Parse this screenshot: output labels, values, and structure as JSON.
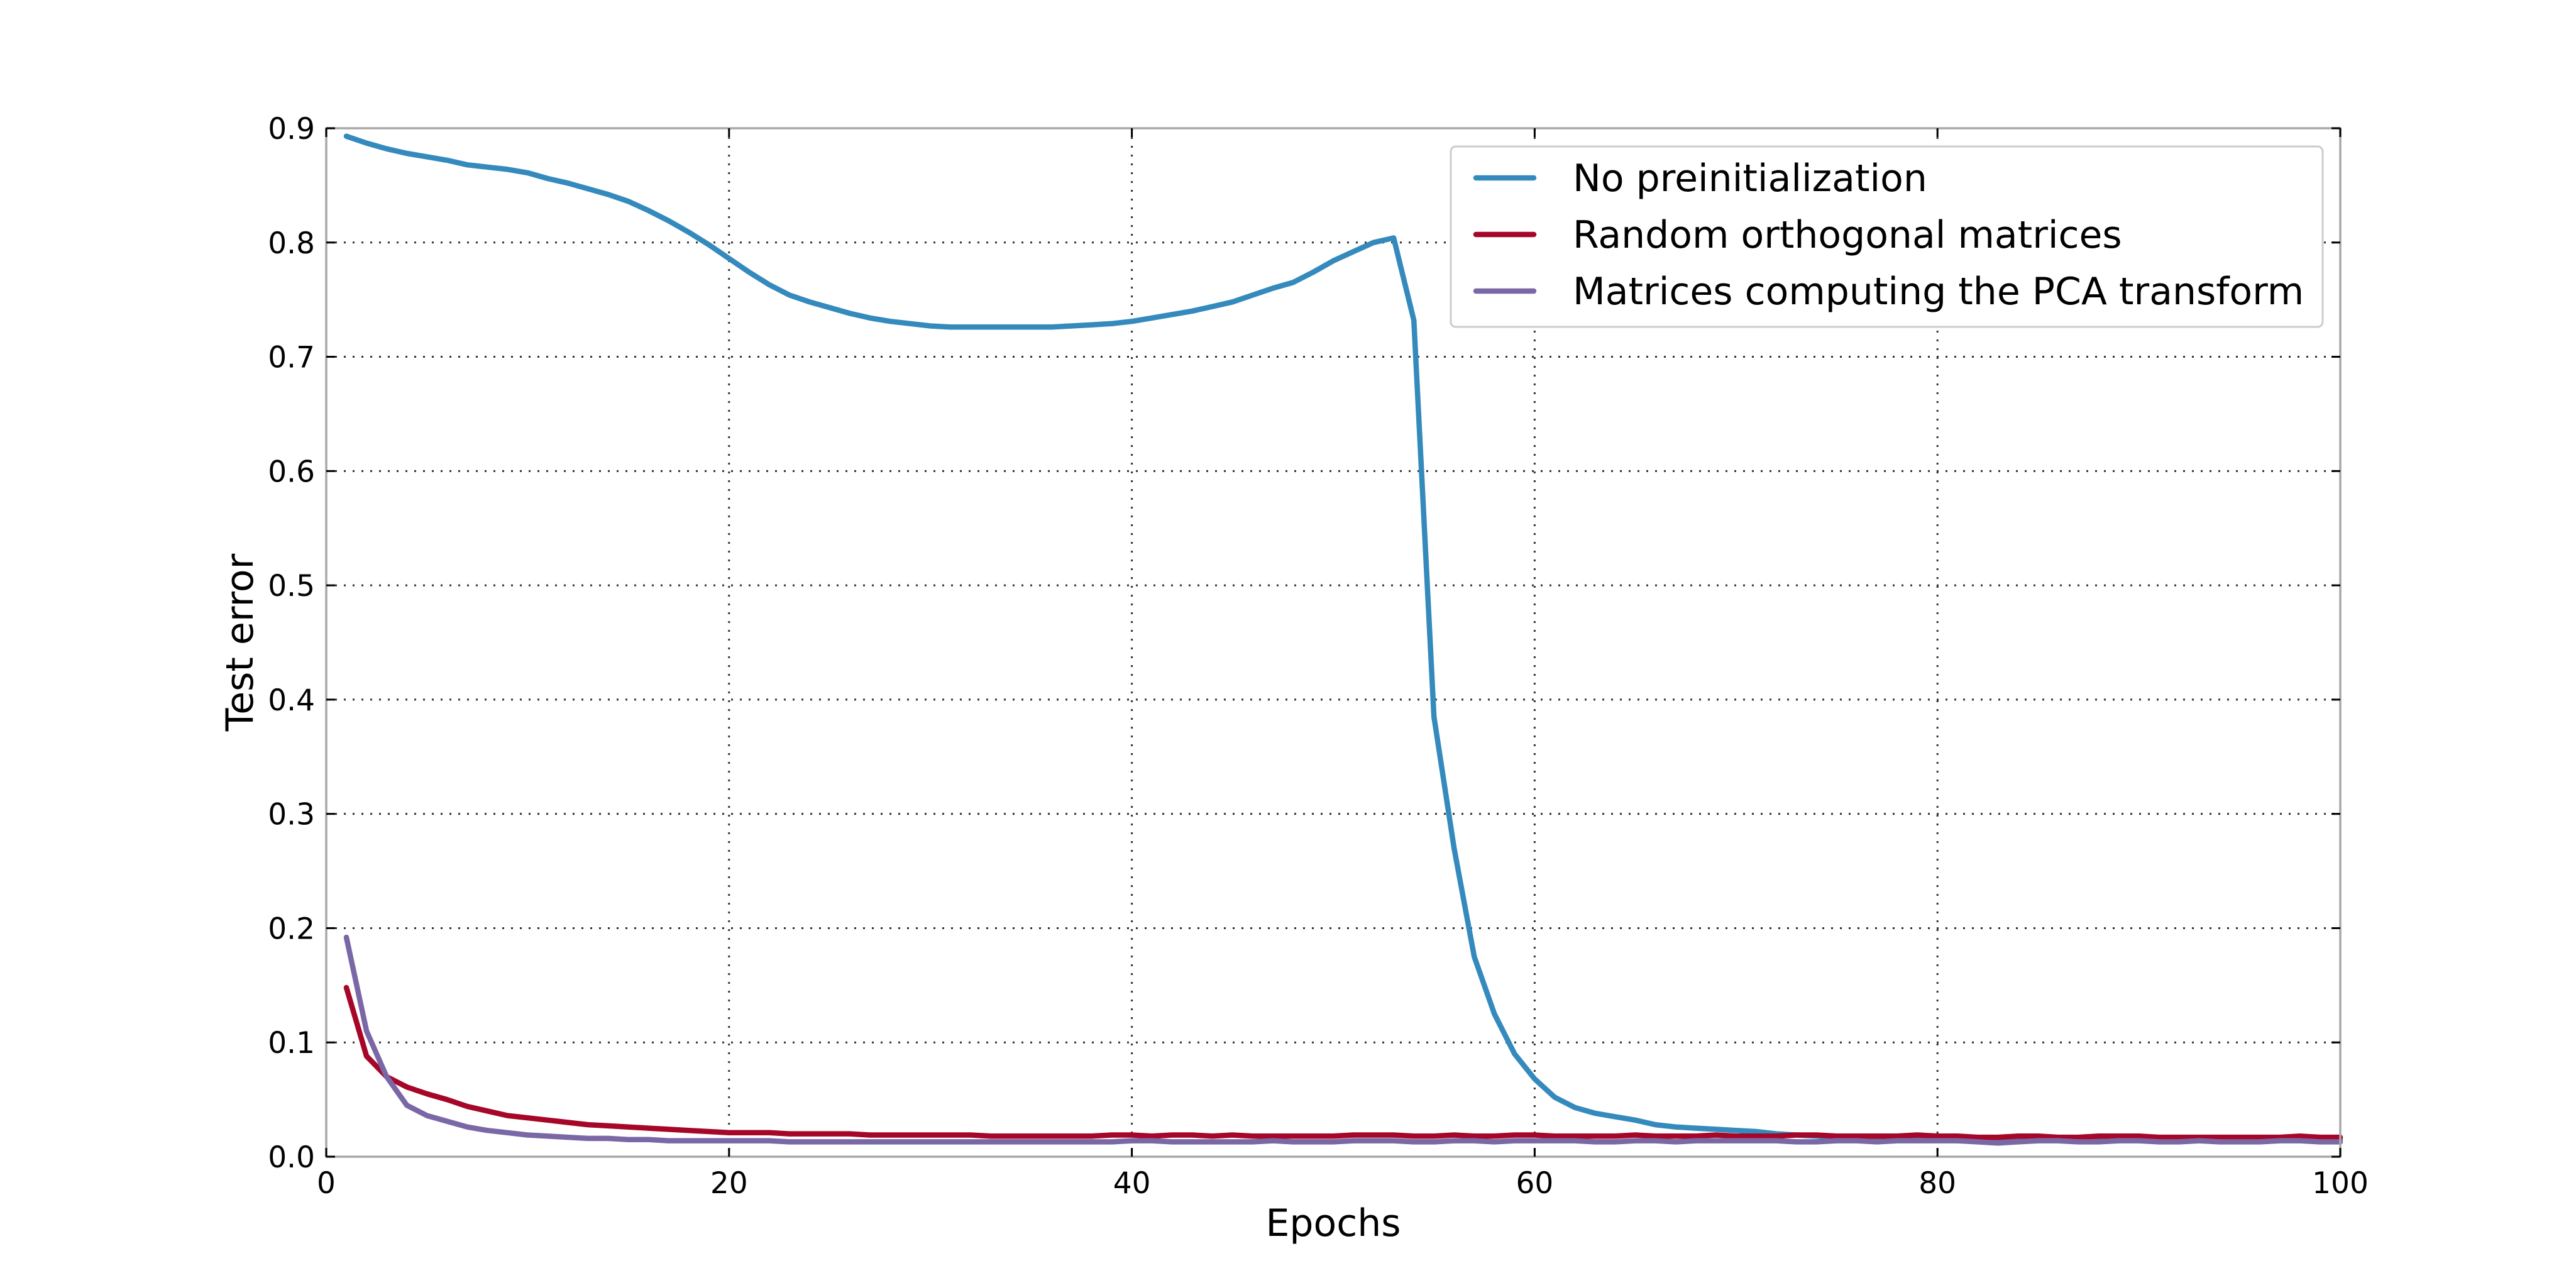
{
  "chart_data": {
    "type": "line",
    "title": "",
    "xlabel": "Epochs",
    "ylabel": "Test error",
    "xlim": [
      0,
      100
    ],
    "ylim": [
      0,
      0.9
    ],
    "xticks": [
      0,
      20,
      40,
      60,
      80,
      100
    ],
    "xtick_labels": [
      "0",
      "20",
      "40",
      "60",
      "80",
      "100"
    ],
    "yticks": [
      0.0,
      0.1,
      0.2,
      0.3,
      0.4,
      0.5,
      0.6,
      0.7,
      0.8,
      0.9
    ],
    "ytick_labels": [
      "0.0",
      "0.1",
      "0.2",
      "0.3",
      "0.4",
      "0.5",
      "0.6",
      "0.7",
      "0.8",
      "0.9"
    ],
    "grid": true,
    "legend_position": "top-right",
    "series": [
      {
        "name": "No preinitialization",
        "color": "#348abd",
        "x": [
          1,
          2,
          3,
          4,
          5,
          6,
          7,
          8,
          9,
          10,
          11,
          12,
          13,
          14,
          15,
          16,
          17,
          18,
          19,
          20,
          21,
          22,
          23,
          24,
          25,
          26,
          27,
          28,
          29,
          30,
          31,
          32,
          33,
          34,
          35,
          36,
          37,
          38,
          39,
          40,
          41,
          42,
          43,
          44,
          45,
          46,
          47,
          48,
          49,
          50,
          51,
          52,
          53,
          54,
          55,
          56,
          57,
          58,
          59,
          60,
          61,
          62,
          63,
          64,
          65,
          66,
          67,
          68,
          69,
          70,
          71,
          72,
          73,
          74,
          75,
          76,
          77,
          78,
          79,
          80,
          81,
          82,
          83,
          84,
          85,
          86,
          87,
          88,
          89,
          90,
          91,
          92,
          93,
          94,
          95,
          96,
          97,
          98,
          99,
          100
        ],
        "values": [
          0.893,
          0.887,
          0.882,
          0.878,
          0.875,
          0.872,
          0.868,
          0.866,
          0.864,
          0.861,
          0.856,
          0.852,
          0.847,
          0.842,
          0.836,
          0.828,
          0.819,
          0.809,
          0.798,
          0.786,
          0.774,
          0.763,
          0.754,
          0.748,
          0.743,
          0.738,
          0.734,
          0.731,
          0.729,
          0.727,
          0.726,
          0.726,
          0.726,
          0.726,
          0.726,
          0.726,
          0.727,
          0.728,
          0.729,
          0.731,
          0.734,
          0.737,
          0.74,
          0.744,
          0.748,
          0.754,
          0.76,
          0.765,
          0.774,
          0.784,
          0.792,
          0.8,
          0.804,
          0.732,
          0.385,
          0.27,
          0.175,
          0.125,
          0.09,
          0.068,
          0.052,
          0.043,
          0.038,
          0.035,
          0.032,
          0.028,
          0.026,
          0.025,
          0.024,
          0.023,
          0.022,
          0.02,
          0.019,
          0.018,
          0.017,
          0.017,
          0.016,
          0.016,
          0.016,
          0.016,
          0.016,
          0.015,
          0.015,
          0.015,
          0.015,
          0.015,
          0.015,
          0.015,
          0.015,
          0.015,
          0.015,
          0.015,
          0.015,
          0.015,
          0.015,
          0.015,
          0.015,
          0.015,
          0.015,
          0.015
        ]
      },
      {
        "name": "Random orthogonal matrices",
        "color": "#a60628",
        "x": [
          1,
          2,
          3,
          4,
          5,
          6,
          7,
          8,
          9,
          10,
          11,
          12,
          13,
          14,
          15,
          16,
          17,
          18,
          19,
          20,
          21,
          22,
          23,
          24,
          25,
          26,
          27,
          28,
          29,
          30,
          31,
          32,
          33,
          34,
          35,
          36,
          37,
          38,
          39,
          40,
          41,
          42,
          43,
          44,
          45,
          46,
          47,
          48,
          49,
          50,
          51,
          52,
          53,
          54,
          55,
          56,
          57,
          58,
          59,
          60,
          61,
          62,
          63,
          64,
          65,
          66,
          67,
          68,
          69,
          70,
          71,
          72,
          73,
          74,
          75,
          76,
          77,
          78,
          79,
          80,
          81,
          82,
          83,
          84,
          85,
          86,
          87,
          88,
          89,
          90,
          91,
          92,
          93,
          94,
          95,
          96,
          97,
          98,
          99,
          100
        ],
        "values": [
          0.148,
          0.088,
          0.07,
          0.061,
          0.055,
          0.05,
          0.044,
          0.04,
          0.036,
          0.034,
          0.032,
          0.03,
          0.028,
          0.027,
          0.026,
          0.025,
          0.024,
          0.023,
          0.022,
          0.021,
          0.021,
          0.021,
          0.02,
          0.02,
          0.02,
          0.02,
          0.019,
          0.019,
          0.019,
          0.019,
          0.019,
          0.019,
          0.018,
          0.018,
          0.018,
          0.018,
          0.018,
          0.018,
          0.019,
          0.019,
          0.018,
          0.019,
          0.019,
          0.018,
          0.019,
          0.018,
          0.018,
          0.018,
          0.018,
          0.018,
          0.019,
          0.019,
          0.019,
          0.018,
          0.018,
          0.019,
          0.018,
          0.018,
          0.019,
          0.019,
          0.018,
          0.018,
          0.018,
          0.018,
          0.019,
          0.018,
          0.018,
          0.018,
          0.019,
          0.018,
          0.018,
          0.018,
          0.019,
          0.019,
          0.018,
          0.018,
          0.018,
          0.018,
          0.019,
          0.018,
          0.018,
          0.017,
          0.017,
          0.018,
          0.018,
          0.017,
          0.017,
          0.018,
          0.018,
          0.018,
          0.017,
          0.017,
          0.017,
          0.017,
          0.017,
          0.017,
          0.017,
          0.018,
          0.017,
          0.017
        ]
      },
      {
        "name": "Matrices computing the PCA transform",
        "color": "#7a68a6",
        "x": [
          1,
          2,
          3,
          4,
          5,
          6,
          7,
          8,
          9,
          10,
          11,
          12,
          13,
          14,
          15,
          16,
          17,
          18,
          19,
          20,
          21,
          22,
          23,
          24,
          25,
          26,
          27,
          28,
          29,
          30,
          31,
          32,
          33,
          34,
          35,
          36,
          37,
          38,
          39,
          40,
          41,
          42,
          43,
          44,
          45,
          46,
          47,
          48,
          49,
          50,
          51,
          52,
          53,
          54,
          55,
          56,
          57,
          58,
          59,
          60,
          61,
          62,
          63,
          64,
          65,
          66,
          67,
          68,
          69,
          70,
          71,
          72,
          73,
          74,
          75,
          76,
          77,
          78,
          79,
          80,
          81,
          82,
          83,
          84,
          85,
          86,
          87,
          88,
          89,
          90,
          91,
          92,
          93,
          94,
          95,
          96,
          97,
          98,
          99,
          100
        ],
        "values": [
          0.192,
          0.11,
          0.07,
          0.045,
          0.036,
          0.031,
          0.026,
          0.023,
          0.021,
          0.019,
          0.018,
          0.017,
          0.016,
          0.016,
          0.015,
          0.015,
          0.014,
          0.014,
          0.014,
          0.014,
          0.014,
          0.014,
          0.013,
          0.013,
          0.013,
          0.013,
          0.013,
          0.013,
          0.013,
          0.013,
          0.013,
          0.013,
          0.013,
          0.013,
          0.013,
          0.013,
          0.013,
          0.013,
          0.013,
          0.014,
          0.014,
          0.013,
          0.013,
          0.013,
          0.013,
          0.013,
          0.014,
          0.013,
          0.013,
          0.013,
          0.014,
          0.014,
          0.014,
          0.013,
          0.013,
          0.014,
          0.014,
          0.013,
          0.014,
          0.014,
          0.014,
          0.014,
          0.013,
          0.013,
          0.014,
          0.014,
          0.013,
          0.014,
          0.014,
          0.014,
          0.014,
          0.014,
          0.013,
          0.013,
          0.014,
          0.014,
          0.013,
          0.014,
          0.014,
          0.014,
          0.014,
          0.013,
          0.012,
          0.013,
          0.014,
          0.014,
          0.013,
          0.013,
          0.014,
          0.014,
          0.013,
          0.013,
          0.014,
          0.013,
          0.013,
          0.013,
          0.014,
          0.014,
          0.013,
          0.013
        ]
      }
    ]
  }
}
